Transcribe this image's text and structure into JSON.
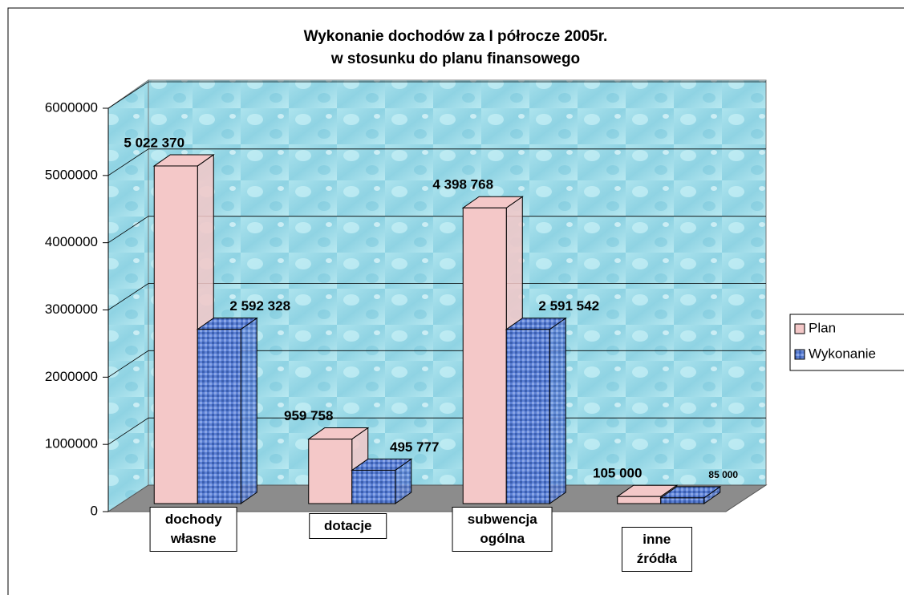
{
  "chart_data": {
    "type": "bar3d",
    "title": [
      "Wykonanie dochodów za I półrocze 2005r.",
      "w stosunku do planu finansowego"
    ],
    "categories": [
      "dochody własne",
      "dotacje",
      "subwencja ogólna",
      "inne źródła"
    ],
    "series": [
      {
        "name": "Plan",
        "color": "#f4c8c8",
        "values": [
          5022370,
          959758,
          4398768,
          105000
        ],
        "value_labels": [
          "5 022 370",
          "959 758",
          "4 398 768",
          "105 000"
        ]
      },
      {
        "name": "Wykonanie",
        "color": "#5b7fd4",
        "values": [
          2592328,
          495777,
          2591542,
          85000
        ],
        "value_labels": [
          "2 592 328",
          "495 777",
          "2 591 542",
          "85 000"
        ]
      }
    ],
    "ylim": [
      0,
      6000000
    ],
    "yticks": [
      0,
      1000000,
      2000000,
      3000000,
      4000000,
      5000000,
      6000000
    ],
    "grid": true,
    "legend": "right"
  }
}
